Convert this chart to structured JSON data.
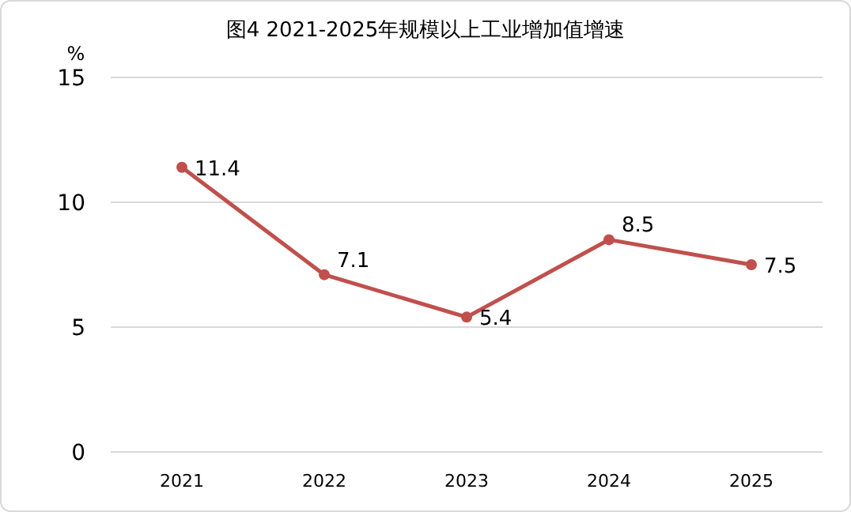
{
  "chart_data": {
    "type": "line",
    "title": "图4 2021-2025年规模以上工业增加值增速",
    "ylabel": "%",
    "categories": [
      "2021",
      "2022",
      "2023",
      "2024",
      "2025"
    ],
    "series": [
      {
        "color": "#c0504d",
        "values": [
          11.4,
          7.1,
          5.4,
          8.5,
          7.5
        ]
      }
    ],
    "ylim": [
      0,
      15
    ],
    "yticks": [
      0,
      5,
      10,
      15
    ],
    "grid": "y",
    "data_labels": true,
    "marker": "circle"
  }
}
